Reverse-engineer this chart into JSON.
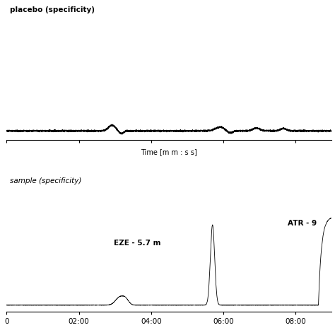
{
  "title1": "placebo (specificity)",
  "title2": "sample (specificity)",
  "xlabel": "Time [m m : s s]",
  "xtick_labels": [
    "0",
    "02:00",
    "04:00",
    "06:00",
    "08:00"
  ],
  "xtick_positions": [
    0,
    120,
    240,
    360,
    480
  ],
  "xmax": 540,
  "background_color": "#ffffff",
  "line_color": "#000000",
  "annotation_eze": "EZE - 5.7 m",
  "annotation_atr": "ATR - 9"
}
